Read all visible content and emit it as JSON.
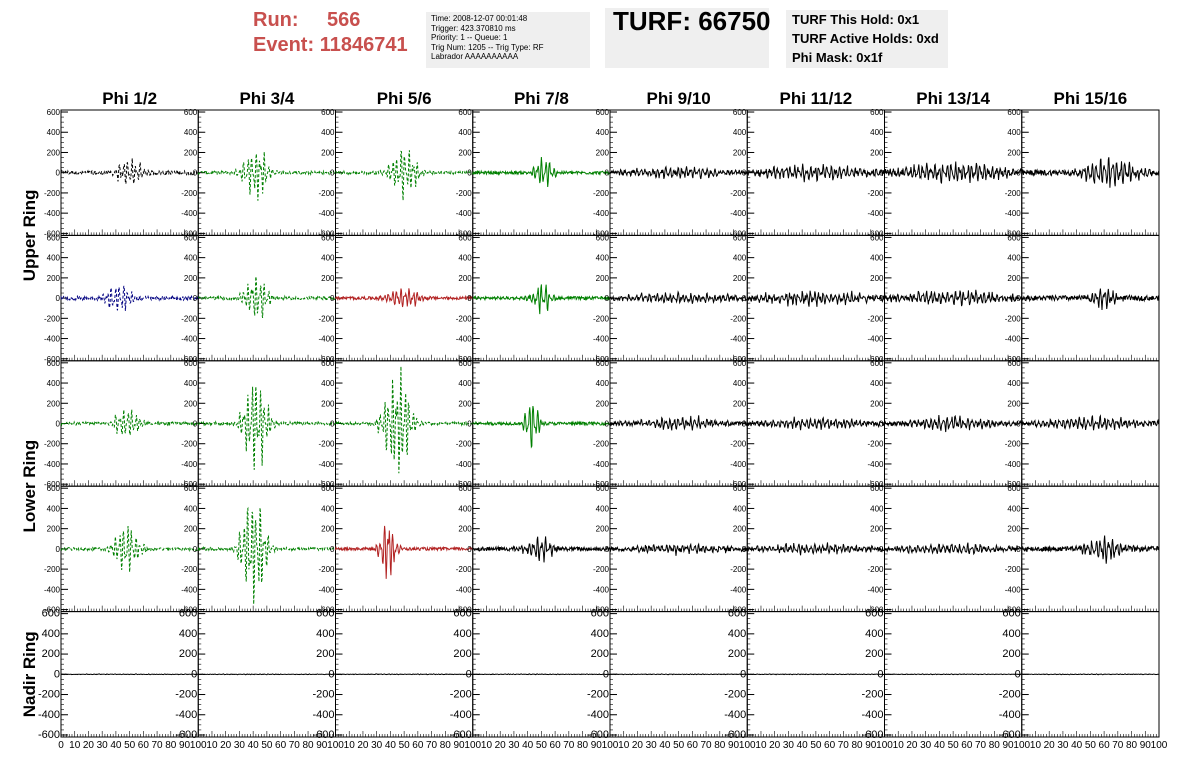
{
  "header": {
    "run_label": "Run:",
    "run_value": "566",
    "event_label": "Event:",
    "event_value": "11846741",
    "info_lines": [
      "Time: 2008-12-07 00:01:48",
      "Trigger: 423.370810 ms",
      "Priority: 1 -- Queue: 1",
      "Trig Num: 1205 -- Trig Type: RF",
      "Labrador AAAAAAAAAA"
    ],
    "turf_label": "TURF: 66750",
    "turf_lines": [
      "TURF This Hold: 0x1",
      "TURF Active Holds: 0xd",
      "Phi Mask: 0x1f"
    ]
  },
  "chart_data": {
    "type": "line",
    "title": "",
    "columns": [
      "Phi 1/2",
      "Phi 3/4",
      "Phi 5/6",
      "Phi 7/8",
      "Phi 9/10",
      "Phi 11/12",
      "Phi 13/14",
      "Phi 15/16"
    ],
    "rows": [
      "Upper Ring",
      "Upper Ring",
      "Lower Ring",
      "Lower Ring",
      "Nadir Ring"
    ],
    "row_titles": [
      "Upper Ring",
      "Lower Ring",
      "Nadir Ring"
    ],
    "xlim": [
      0,
      100
    ],
    "ylim": [
      -620,
      620
    ],
    "y_ticks": [
      -600,
      -400,
      -200,
      0,
      200,
      400,
      600
    ],
    "x_ticks": [
      0,
      10,
      20,
      30,
      40,
      50,
      60,
      70,
      80,
      90,
      100
    ],
    "colors": {
      "normal": "#000000",
      "triggered": "#008000",
      "hot": "#b22222",
      "nadir": "#000080"
    },
    "panels": [
      [
        {
          "color": "#000000",
          "dashed": true,
          "amp": 140,
          "center": 50,
          "width": 10,
          "noise": 20
        },
        {
          "color": "#008000",
          "dashed": true,
          "amp": 270,
          "center": 42,
          "width": 9,
          "noise": 15
        },
        {
          "color": "#008000",
          "dashed": true,
          "amp": 250,
          "center": 50,
          "width": 10,
          "noise": 15
        },
        {
          "color": "#008000",
          "dashed": false,
          "amp": 160,
          "center": 52,
          "width": 7,
          "noise": 15
        },
        {
          "color": "#000000",
          "dashed": false,
          "amp": 50,
          "center": 50,
          "width": 40,
          "noise": 20
        },
        {
          "color": "#000000",
          "dashed": false,
          "amp": 70,
          "center": 50,
          "width": 40,
          "noise": 25
        },
        {
          "color": "#000000",
          "dashed": false,
          "amp": 90,
          "center": 50,
          "width": 40,
          "noise": 30
        },
        {
          "color": "#000000",
          "dashed": false,
          "amp": 140,
          "center": 65,
          "width": 20,
          "noise": 30
        }
      ],
      [
        {
          "color": "#000080",
          "dashed": true,
          "amp": 170,
          "center": 42,
          "width": 9,
          "noise": 20
        },
        {
          "color": "#008000",
          "dashed": true,
          "amp": 230,
          "center": 42,
          "width": 9,
          "noise": 15
        },
        {
          "color": "#b22222",
          "dashed": false,
          "amp": 110,
          "center": 50,
          "width": 12,
          "noise": 15
        },
        {
          "color": "#008000",
          "dashed": false,
          "amp": 150,
          "center": 50,
          "width": 7,
          "noise": 15
        },
        {
          "color": "#000000",
          "dashed": false,
          "amp": 50,
          "center": 50,
          "width": 40,
          "noise": 20
        },
        {
          "color": "#000000",
          "dashed": false,
          "amp": 70,
          "center": 50,
          "width": 40,
          "noise": 25
        },
        {
          "color": "#000000",
          "dashed": false,
          "amp": 70,
          "center": 50,
          "width": 40,
          "noise": 25
        },
        {
          "color": "#000000",
          "dashed": false,
          "amp": 120,
          "center": 60,
          "width": 10,
          "noise": 25
        }
      ],
      [
        {
          "color": "#008000",
          "dashed": true,
          "amp": 150,
          "center": 48,
          "width": 10,
          "noise": 15
        },
        {
          "color": "#008000",
          "dashed": true,
          "amp": 480,
          "center": 42,
          "width": 9,
          "noise": 15
        },
        {
          "color": "#008000",
          "dashed": true,
          "amp": 540,
          "center": 45,
          "width": 10,
          "noise": 15
        },
        {
          "color": "#008000",
          "dashed": false,
          "amp": 300,
          "center": 43,
          "width": 5,
          "noise": 15
        },
        {
          "color": "#000000",
          "dashed": false,
          "amp": 60,
          "center": 50,
          "width": 30,
          "noise": 20
        },
        {
          "color": "#000000",
          "dashed": false,
          "amp": 50,
          "center": 50,
          "width": 40,
          "noise": 20
        },
        {
          "color": "#000000",
          "dashed": false,
          "amp": 70,
          "center": 50,
          "width": 30,
          "noise": 20
        },
        {
          "color": "#000000",
          "dashed": false,
          "amp": 60,
          "center": 50,
          "width": 40,
          "noise": 20
        }
      ],
      [
        {
          "color": "#008000",
          "dashed": true,
          "amp": 230,
          "center": 48,
          "width": 10,
          "noise": 15
        },
        {
          "color": "#008000",
          "dashed": true,
          "amp": 580,
          "center": 40,
          "width": 9,
          "noise": 15
        },
        {
          "color": "#b22222",
          "dashed": false,
          "amp": 310,
          "center": 38,
          "width": 6,
          "noise": 15
        },
        {
          "color": "#000000",
          "dashed": false,
          "amp": 130,
          "center": 48,
          "width": 10,
          "noise": 20
        },
        {
          "color": "#000000",
          "dashed": false,
          "amp": 40,
          "center": 50,
          "width": 40,
          "noise": 20
        },
        {
          "color": "#000000",
          "dashed": false,
          "amp": 50,
          "center": 50,
          "width": 40,
          "noise": 20
        },
        {
          "color": "#000000",
          "dashed": false,
          "amp": 50,
          "center": 50,
          "width": 40,
          "noise": 20
        },
        {
          "color": "#000000",
          "dashed": false,
          "amp": 120,
          "center": 60,
          "width": 15,
          "noise": 25
        }
      ],
      [
        {
          "color": "#000000",
          "dashed": false,
          "amp": 3,
          "center": 50,
          "width": 50,
          "noise": 2
        },
        {
          "color": "#000000",
          "dashed": false,
          "amp": 3,
          "center": 50,
          "width": 50,
          "noise": 2
        },
        {
          "color": "#000000",
          "dashed": false,
          "amp": 3,
          "center": 50,
          "width": 50,
          "noise": 2
        },
        {
          "color": "#000000",
          "dashed": false,
          "amp": 3,
          "center": 50,
          "width": 50,
          "noise": 2
        },
        {
          "color": "#000000",
          "dashed": false,
          "amp": 3,
          "center": 50,
          "width": 50,
          "noise": 2
        },
        {
          "color": "#000000",
          "dashed": false,
          "amp": 3,
          "center": 50,
          "width": 50,
          "noise": 2
        },
        {
          "color": "#000000",
          "dashed": false,
          "amp": 3,
          "center": 50,
          "width": 50,
          "noise": 2
        },
        {
          "color": "#000000",
          "dashed": false,
          "amp": 3,
          "center": 50,
          "width": 50,
          "noise": 2
        }
      ]
    ]
  }
}
